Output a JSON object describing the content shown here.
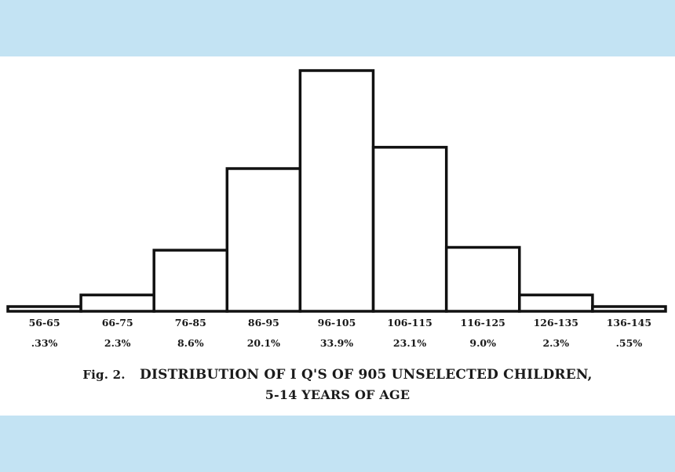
{
  "chart_data": {
    "type": "bar",
    "categories": [
      "56-65",
      "66-75",
      "76-85",
      "86-95",
      "96-105",
      "106-115",
      "116-125",
      "126-135",
      "136-145"
    ],
    "values": [
      0.33,
      2.3,
      8.6,
      20.1,
      33.9,
      23.1,
      9.0,
      2.3,
      0.55
    ],
    "percent_labels": [
      ".33%",
      "2.3%",
      "8.6%",
      "20.1%",
      "33.9%",
      "23.1%",
      "9.0%",
      "2.3%",
      ".55%"
    ],
    "title_prefix": "Fig. 2.",
    "title_line1": "DISTRIBUTION OF I Q'S OF 905 UNSELECTED CHILDREN,",
    "title_line2": "5-14 YEARS OF AGE",
    "xlabel": "",
    "ylabel": "",
    "ylim": [
      0,
      33.9
    ],
    "grid": false,
    "bar_fill": "#ffffff",
    "bar_stroke": "#111111"
  },
  "colors": {
    "band": "#c3e3f3",
    "panel": "#ffffff",
    "ink": "#111111"
  }
}
